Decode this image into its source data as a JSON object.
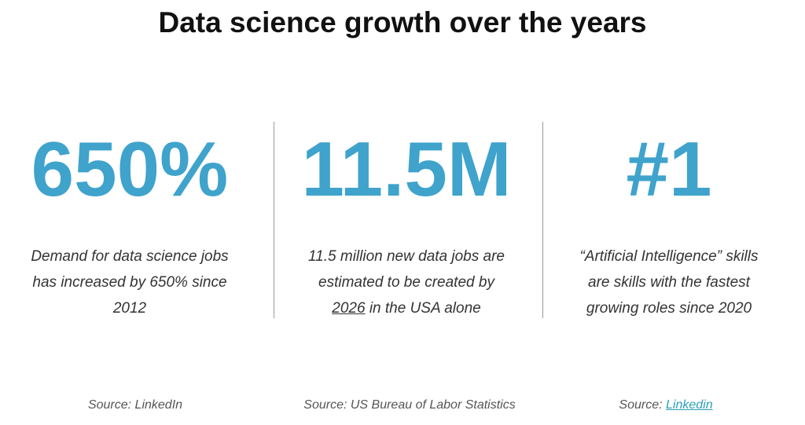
{
  "title": "Data science growth over the years",
  "stats": [
    {
      "value": "650%",
      "description": [
        "Demand for data science jobs",
        "has increased by 650% since",
        "2012"
      ],
      "source": "Source: LinkedIn"
    },
    {
      "value": "11.5M",
      "description": [
        "11.5 million new data jobs are",
        "estimated to be created by",
        "2026",
        " in the USA alone"
      ],
      "source": "Source: US Bureau of Labor Statistics"
    },
    {
      "value": "#1",
      "description": [
        "“Artificial Intelligence” skills",
        "are skills with the fastest",
        "growing roles since 2020"
      ],
      "source": [
        "Source: ",
        "Linkedin"
      ]
    }
  ]
}
